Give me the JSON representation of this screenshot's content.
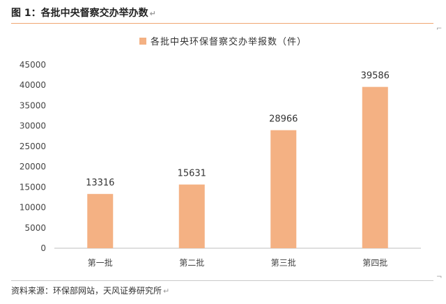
{
  "figure": {
    "title": "图 1：各批中央督察交办举办数",
    "source": "资料来源：环保部网站，天风证券研究所"
  },
  "colors": {
    "bar": "#f4b183",
    "accent_rule": "#f0a672",
    "axis": "#bfbfbf"
  },
  "chart_data": {
    "type": "bar",
    "title": "",
    "categories": [
      "第一批",
      "第二批",
      "第三批",
      "第四批"
    ],
    "series": [
      {
        "name": "各批中央环保督察交办举报数（件）",
        "values": [
          13316,
          15631,
          28966,
          39586
        ]
      }
    ],
    "xlabel": "",
    "ylabel": "",
    "ylim": [
      0,
      45000
    ],
    "yticks": [
      0,
      5000,
      10000,
      15000,
      20000,
      25000,
      30000,
      35000,
      40000,
      45000
    ],
    "grid": false,
    "legend": "top-center",
    "data_labels": true
  }
}
